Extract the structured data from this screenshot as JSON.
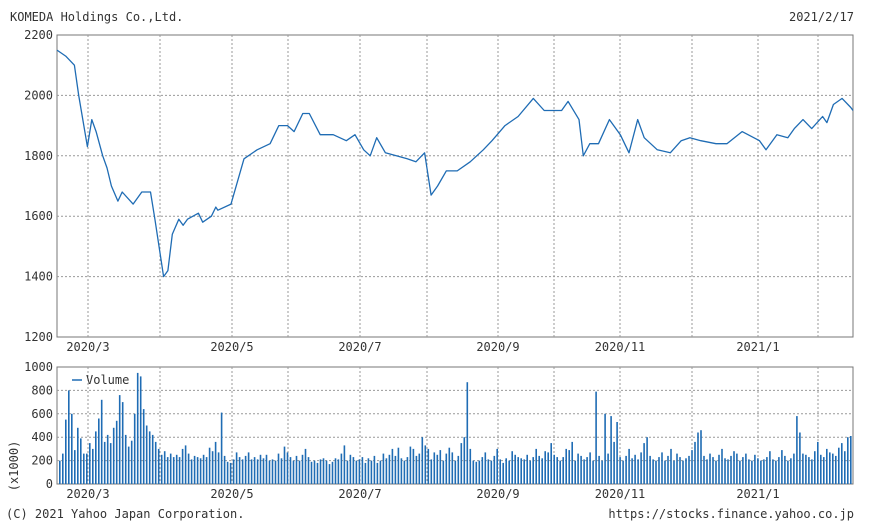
{
  "header": {
    "company": "KOMEDA Holdings Co.,Ltd.",
    "date": "2021/2/17"
  },
  "footer": {
    "copyright": "(C) 2021 Yahoo Japan Corporation.",
    "source": "https://stocks.finance.yahoo.co.jp"
  },
  "colors": {
    "line": "#1f6cb4",
    "bar": "#1f6cb4",
    "grid": "#999999",
    "frame": "#777777"
  },
  "chart_data": [
    {
      "type": "line",
      "title": "KOMEDA Holdings Co.,Ltd.",
      "ylim": [
        1200,
        2200
      ],
      "yticks": [
        "2200",
        "2000",
        "1800",
        "1600",
        "1400",
        "1200"
      ],
      "xticks": [
        "2020/3",
        "2020/5",
        "2020/7",
        "2020/9",
        "2020/11",
        "2021/1"
      ],
      "xrange": [
        "2020-02-17",
        "2021-02-17"
      ],
      "grid": true,
      "series": [
        {
          "x": [
            "2020-02-17",
            "2020-02-21",
            "2020-02-25",
            "2020-02-27",
            "2020-03-02",
            "2020-03-04",
            "2020-03-06",
            "2020-03-09",
            "2020-03-11",
            "2020-03-13",
            "2020-03-16",
            "2020-03-18",
            "2020-03-23",
            "2020-03-27",
            "2020-03-31",
            "2020-04-02",
            "2020-04-06",
            "2020-04-08",
            "2020-04-10",
            "2020-04-13",
            "2020-04-15",
            "2020-04-17",
            "2020-04-22",
            "2020-04-24",
            "2020-04-28",
            "2020-04-30",
            "2020-05-01",
            "2020-05-07",
            "2020-05-13",
            "2020-05-19",
            "2020-05-25",
            "2020-05-29",
            "2020-06-02",
            "2020-06-05",
            "2020-06-09",
            "2020-06-12",
            "2020-06-17",
            "2020-06-23",
            "2020-06-29",
            "2020-07-03",
            "2020-07-07",
            "2020-07-10",
            "2020-07-13",
            "2020-07-17",
            "2020-07-22",
            "2020-07-27",
            "2020-07-31",
            "2020-08-04",
            "2020-08-07",
            "2020-08-10",
            "2020-08-14",
            "2020-08-19",
            "2020-08-25",
            "2020-08-31",
            "2020-09-04",
            "2020-09-10",
            "2020-09-16",
            "2020-09-23",
            "2020-09-28",
            "2020-10-02",
            "2020-10-06",
            "2020-10-09",
            "2020-10-14",
            "2020-10-16",
            "2020-10-19",
            "2020-10-23",
            "2020-10-28",
            "2020-11-02",
            "2020-11-06",
            "2020-11-10",
            "2020-11-13",
            "2020-11-19",
            "2020-11-25",
            "2020-11-30",
            "2020-12-04",
            "2020-12-09",
            "2020-12-16",
            "2020-12-21",
            "2020-12-28",
            "2021-01-05",
            "2021-01-08",
            "2021-01-13",
            "2021-01-18",
            "2021-01-21",
            "2021-01-25",
            "2021-01-29",
            "2021-02-03",
            "2021-02-05",
            "2021-02-08",
            "2021-02-12",
            "2021-02-16",
            "2021-02-17"
          ],
          "y": [
            2150,
            2130,
            2100,
            2000,
            1830,
            1920,
            1880,
            1800,
            1760,
            1700,
            1650,
            1680,
            1640,
            1680,
            1680,
            1590,
            1400,
            1420,
            1540,
            1590,
            1570,
            1590,
            1610,
            1580,
            1600,
            1630,
            1620,
            1640,
            1790,
            1820,
            1840,
            1900,
            1900,
            1880,
            1940,
            1940,
            1870,
            1870,
            1850,
            1870,
            1820,
            1800,
            1860,
            1810,
            1800,
            1790,
            1780,
            1810,
            1670,
            1700,
            1750,
            1750,
            1780,
            1820,
            1850,
            1900,
            1930,
            1990,
            1950,
            1950,
            1950,
            1980,
            1920,
            1800,
            1840,
            1840,
            1920,
            1870,
            1810,
            1920,
            1860,
            1820,
            1810,
            1850,
            1860,
            1850,
            1840,
            1840,
            1880,
            1850,
            1820,
            1870,
            1860,
            1890,
            1920,
            1890,
            1930,
            1910,
            1970,
            1990,
            1960,
            1950
          ]
        }
      ]
    },
    {
      "type": "bar",
      "ylim": [
        0,
        1000
      ],
      "yticks": [
        "1000",
        "800",
        "600",
        "400",
        "200",
        "0"
      ],
      "ylabel": "(x1000)",
      "xticks": [
        "2020/3",
        "2020/5",
        "2020/7",
        "2020/9",
        "2020/11",
        "2021/1"
      ],
      "legend": [
        "Volume"
      ],
      "legend_position": "top-left",
      "series": [
        {
          "name": "Volume",
          "values": [
            200,
            260,
            550,
            800,
            600,
            290,
            480,
            390,
            260,
            260,
            350,
            300,
            450,
            560,
            720,
            360,
            420,
            350,
            480,
            540,
            760,
            700,
            420,
            320,
            370,
            600,
            950,
            920,
            640,
            500,
            450,
            420,
            360,
            300,
            250,
            280,
            230,
            260,
            230,
            250,
            230,
            300,
            330,
            260,
            210,
            240,
            230,
            220,
            250,
            230,
            310,
            280,
            360,
            270,
            610,
            240,
            190,
            180,
            210,
            270,
            230,
            210,
            240,
            270,
            210,
            230,
            210,
            250,
            220,
            250,
            200,
            210,
            200,
            260,
            220,
            320,
            270,
            230,
            200,
            240,
            200,
            250,
            300,
            230,
            190,
            200,
            180,
            210,
            220,
            200,
            170,
            190,
            220,
            210,
            260,
            330,
            200,
            250,
            230,
            200,
            210,
            230,
            180,
            220,
            200,
            240,
            180,
            200,
            260,
            220,
            250,
            300,
            240,
            310,
            220,
            200,
            230,
            320,
            300,
            240,
            260,
            400,
            330,
            300,
            210,
            270,
            250,
            290,
            200,
            260,
            310,
            270,
            200,
            240,
            350,
            400,
            870,
            300,
            200,
            190,
            200,
            230,
            270,
            210,
            200,
            240,
            300,
            210,
            180,
            220,
            200,
            280,
            250,
            230,
            220,
            210,
            250,
            200,
            230,
            300,
            240,
            220,
            280,
            270,
            350,
            250,
            230,
            200,
            230,
            300,
            290,
            360,
            200,
            260,
            240,
            210,
            230,
            270,
            200,
            790,
            240,
            200,
            600,
            260,
            580,
            360,
            530,
            230,
            200,
            240,
            300,
            220,
            250,
            210,
            270,
            350,
            400,
            240,
            210,
            200,
            230,
            270,
            200,
            240,
            300,
            200,
            260,
            230,
            200,
            220,
            240,
            290,
            360,
            440,
            460,
            240,
            210,
            260,
            230,
            200,
            250,
            300,
            220,
            210,
            240,
            280,
            260,
            200,
            230,
            260,
            210,
            200,
            250,
            220,
            200,
            210,
            230,
            280,
            210,
            200,
            230,
            290,
            240,
            200,
            220,
            260,
            580,
            440,
            260,
            250,
            230,
            210,
            280,
            360,
            250,
            230,
            300,
            270,
            260,
            240,
            310,
            350,
            280,
            400,
            410
          ]
        }
      ]
    }
  ]
}
